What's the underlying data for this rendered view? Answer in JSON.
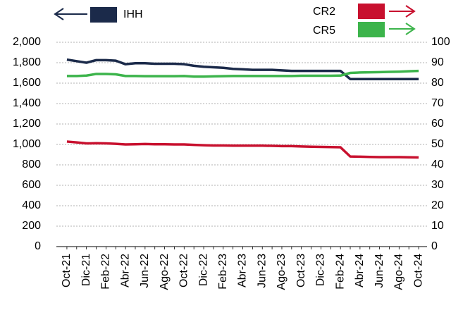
{
  "chart_data": {
    "type": "line",
    "categories": [
      "Oct-21",
      null,
      "Dic-21",
      null,
      "Feb-22",
      null,
      "Abr-22",
      null,
      "Jun-22",
      null,
      "Ago-22",
      null,
      "Oct-22",
      null,
      "Dic-22",
      null,
      "Feb-23",
      null,
      "Abr-23",
      null,
      "Jun-23",
      null,
      "Ago-23",
      null,
      "Oct-23",
      null,
      "Dic-23",
      null,
      "Feb-24",
      null,
      "Abr-24",
      null,
      "Jun-24",
      null,
      "Ago-24",
      null,
      "Oct-24"
    ],
    "series": [
      {
        "name": "IHH",
        "color": "#1b2a4a",
        "axis": "y",
        "values": [
          1830,
          1815,
          1800,
          1825,
          1825,
          1820,
          1785,
          1795,
          1795,
          1790,
          1790,
          1790,
          1785,
          1770,
          1760,
          1755,
          1750,
          1740,
          1735,
          1730,
          1730,
          1730,
          1725,
          1720,
          1720,
          1720,
          1720,
          1720,
          1720,
          1640,
          1640,
          1640,
          1640,
          1640,
          1640,
          1640,
          1640
        ]
      },
      {
        "name": "CR2",
        "color": "#c8102e",
        "axis": "y2",
        "values": [
          51.4,
          51,
          50.5,
          50.6,
          50.5,
          50.3,
          50,
          50.1,
          50.2,
          50.1,
          50.1,
          50,
          50,
          49.8,
          49.6,
          49.5,
          49.5,
          49.4,
          49.4,
          49.4,
          49.4,
          49.3,
          49.2,
          49.2,
          49,
          48.9,
          48.8,
          48.7,
          48.6,
          44.1,
          44,
          43.9,
          43.8,
          43.8,
          43.8,
          43.7,
          43.6
        ]
      },
      {
        "name": "CR5",
        "color": "#3cb44b",
        "axis": "y2",
        "values": [
          83.5,
          83.5,
          83.7,
          84.5,
          84.5,
          84.3,
          83.5,
          83.5,
          83.4,
          83.4,
          83.4,
          83.4,
          83.5,
          83.2,
          83.2,
          83.3,
          83.4,
          83.5,
          83.5,
          83.5,
          83.5,
          83.5,
          83.5,
          83.5,
          83.6,
          83.6,
          83.6,
          83.6,
          83.7,
          85,
          85.2,
          85.3,
          85.4,
          85.5,
          85.6,
          85.8,
          86
        ]
      }
    ],
    "ylim": [
      0,
      2000
    ],
    "yticks": [
      0,
      200,
      400,
      600,
      800,
      {
        "value": 1000,
        "label": "1,000"
      },
      {
        "value": 1200,
        "label": "1,200"
      },
      {
        "value": 1400,
        "label": "1,400"
      },
      {
        "value": 1600,
        "label": "1,600"
      },
      {
        "value": 1800,
        "label": "1,800"
      },
      {
        "value": 2000,
        "label": "2,000"
      }
    ],
    "y2lim": [
      0,
      100
    ],
    "y2ticks": [
      0,
      10,
      20,
      30,
      40,
      50,
      60,
      70,
      80,
      90,
      100
    ],
    "grid": true
  }
}
